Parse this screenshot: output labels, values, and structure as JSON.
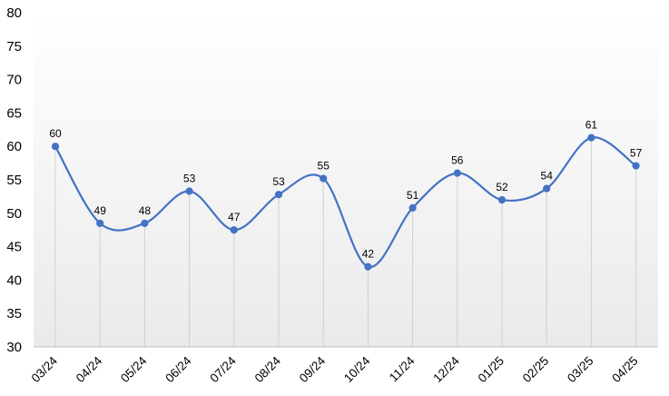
{
  "chart_data": {
    "type": "line",
    "title": "",
    "xlabel": "",
    "ylabel": "",
    "categories": [
      "03/24",
      "04/24",
      "05/24",
      "06/24",
      "07/24",
      "08/24",
      "09/24",
      "10/24",
      "11/24",
      "12/24",
      "01/25",
      "02/25",
      "03/25",
      "04/25"
    ],
    "series": [
      {
        "values": [
          60,
          48.5,
          48.5,
          53.3,
          47.5,
          52.8,
          55.2,
          42,
          50.8,
          56,
          52,
          53.7,
          61.3,
          57.1
        ],
        "labels": [
          "60",
          "49",
          "48",
          "53",
          "47",
          "53",
          "55",
          "42",
          "51",
          "56",
          "52",
          "54",
          "61",
          "57"
        ]
      }
    ],
    "ylim": [
      30,
      80
    ],
    "yticks": [
      "30",
      "35",
      "40",
      "45",
      "50",
      "55",
      "60",
      "65",
      "70",
      "75",
      "80"
    ],
    "grid": false,
    "drop_lines": true,
    "smooth": true,
    "legend": "none",
    "colors": {
      "line": "#4472C4",
      "marker": "#4472C4",
      "drop_line": "#d0d0d0",
      "background_top": "#ffffff",
      "background_bottom": "#eaeaea"
    }
  }
}
